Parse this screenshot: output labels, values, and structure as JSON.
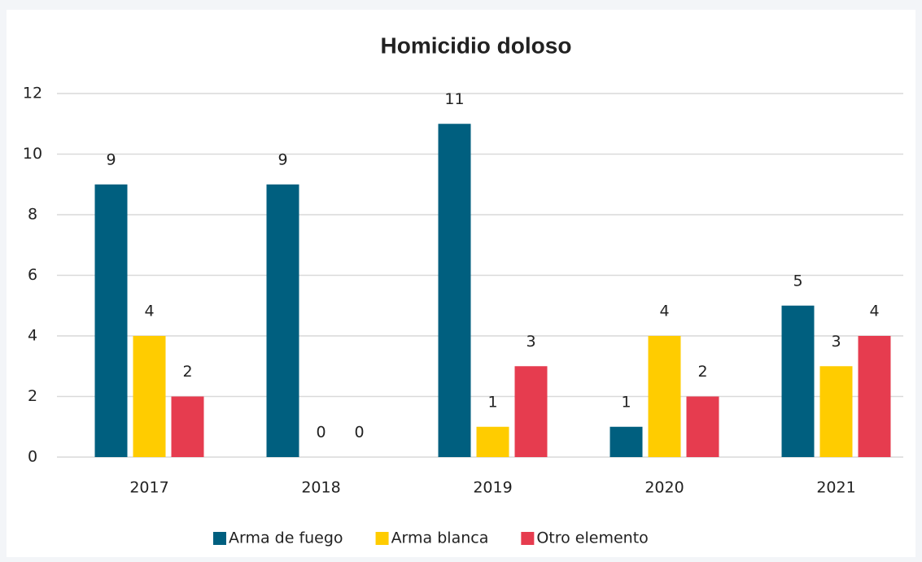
{
  "chart_data": {
    "type": "bar",
    "title": "Homicidio doloso",
    "categories": [
      "2017",
      "2018",
      "2019",
      "2020",
      "2021"
    ],
    "series": [
      {
        "name": "Arma de fuego",
        "color": "#005f7f",
        "values": [
          9,
          9,
          11,
          1,
          5
        ]
      },
      {
        "name": "Arma blanca",
        "color": "#ffcc00",
        "values": [
          4,
          0,
          1,
          4,
          3
        ]
      },
      {
        "name": "Otro elemento",
        "color": "#e63c4f",
        "values": [
          2,
          0,
          3,
          2,
          4
        ]
      }
    ],
    "ylim": [
      0,
      12
    ],
    "yticks": [
      0,
      2,
      4,
      6,
      8,
      10,
      12
    ],
    "grid": true,
    "legend": "bottom"
  }
}
